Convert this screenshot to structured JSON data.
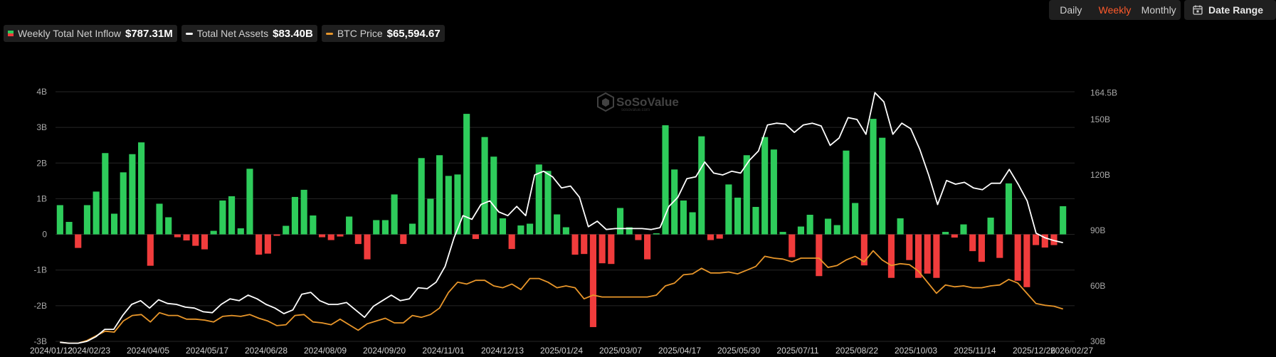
{
  "controls": {
    "intervals": [
      {
        "label": "Daily",
        "active": false
      },
      {
        "label": "Weekly",
        "active": true
      },
      {
        "label": "Monthly",
        "active": false
      }
    ],
    "date_range_label": "Date Range"
  },
  "legend": [
    {
      "name": "Weekly Total Net Inflow",
      "value": "$787.31M",
      "swatch": "bar"
    },
    {
      "name": "Total Net Assets",
      "value": "$83.40B",
      "swatch": "#ffffff"
    },
    {
      "name": "BTC Price",
      "value": "$65,594.67",
      "swatch": "#e8962a"
    }
  ],
  "watermark": {
    "name": "SoSoValue",
    "sub": "sosovalue.com"
  },
  "colors": {
    "positive": "#2ecc5b",
    "negative": "#f03c3c",
    "assets_line": "#ffffff",
    "price_line": "#e8962a",
    "grid": "#262626"
  },
  "chart_data": {
    "type": "bar",
    "x_tick_labels": [
      "2024/01/12",
      "2024/02/23",
      "2024/04/05",
      "2024/05/17",
      "2024/06/28",
      "2024/08/09",
      "2024/09/20",
      "2024/11/01",
      "2024/12/13",
      "2025/01/24",
      "2025/03/07",
      "2025/04/17",
      "2025/05/30",
      "2025/07/11",
      "2025/08/22",
      "2025/10/03",
      "2025/11/14",
      "2025/12/26",
      "2026/02/27"
    ],
    "left_axis": {
      "ticks": [
        "4B",
        "3B",
        "2B",
        "1B",
        "0",
        "-1B",
        "-2B",
        "-3B"
      ],
      "ylim": [
        -3,
        4
      ],
      "unit": "B"
    },
    "right_axis": {
      "ticks": [
        "164.5B",
        "150B",
        "120B",
        "90B",
        "60B",
        "30B"
      ],
      "ylim": [
        30,
        165
      ],
      "unit": "B"
    },
    "series": [
      {
        "name": "Weekly Total Net Inflow",
        "kind": "bar",
        "axis": "left",
        "values": [
          0.82,
          0.35,
          -0.38,
          0.82,
          1.2,
          2.28,
          0.58,
          1.74,
          2.25,
          2.58,
          -0.88,
          0.86,
          0.48,
          -0.08,
          -0.17,
          -0.32,
          -0.42,
          0.1,
          0.95,
          1.07,
          0.17,
          1.84,
          -0.57,
          -0.54,
          -0.04,
          0.24,
          1.05,
          1.25,
          0.53,
          -0.08,
          -0.16,
          -0.06,
          0.5,
          -0.27,
          -0.7,
          0.4,
          0.4,
          1.12,
          -0.27,
          0.3,
          2.14,
          1.0,
          2.22,
          1.64,
          1.68,
          3.38,
          -0.13,
          2.73,
          2.18,
          0.45,
          -0.41,
          0.25,
          0.3,
          1.96,
          1.78,
          0.56,
          0.2,
          -0.57,
          -0.55,
          -2.6,
          -0.81,
          -0.83,
          0.74,
          0.2,
          -0.16,
          -0.7,
          0.03,
          3.06,
          1.82,
          0.95,
          0.62,
          2.75,
          -0.16,
          -0.12,
          1.4,
          1.03,
          2.22,
          0.77,
          2.73,
          2.38,
          0.07,
          -0.64,
          0.22,
          0.55,
          -1.17,
          0.44,
          0.26,
          2.35,
          0.88,
          -0.87,
          3.24,
          2.71,
          -1.22,
          0.45,
          -0.72,
          -1.22,
          -1.1,
          -1.22,
          0.07,
          -0.09,
          0.28,
          -0.47,
          -0.77,
          0.47,
          -0.66,
          1.43,
          -1.3,
          -1.48,
          -0.3,
          -0.37,
          -0.3,
          0.79
        ]
      },
      {
        "name": "Total Net Assets",
        "kind": "line",
        "axis": "right",
        "values": [
          29.5,
          29.0,
          29.0,
          30.0,
          32.5,
          36.5,
          36.5,
          44.0,
          50.0,
          52.0,
          48.0,
          52.5,
          50.5,
          50.0,
          48.5,
          48.0,
          46.0,
          45.5,
          50.0,
          53.0,
          52.0,
          55.0,
          53.0,
          50.0,
          48.0,
          45.0,
          47.0,
          55.5,
          56.5,
          52.0,
          50.0,
          50.0,
          51.0,
          47.0,
          43.0,
          49.0,
          52.0,
          55.0,
          52.0,
          53.0,
          59.0,
          58.5,
          62.0,
          70.5,
          86.0,
          98.0,
          96.0,
          104.0,
          106.0,
          100.0,
          98.0,
          103.0,
          98.0,
          120.0,
          122.0,
          119.0,
          113.0,
          114.0,
          108.0,
          92.0,
          95.0,
          90.5,
          91.0,
          91.0,
          91.0,
          91.0,
          90.5,
          91.5,
          103.0,
          108.0,
          118.0,
          119.0,
          127.0,
          121.0,
          120.0,
          122.0,
          121.0,
          128.0,
          133.0,
          147.0,
          148.0,
          147.5,
          143.0,
          147.0,
          148.0,
          146.5,
          136.0,
          140.0,
          151.0,
          150.0,
          142.0,
          164.5,
          159.5,
          142.0,
          148.0,
          145.0,
          134.0,
          120.0,
          104.0,
          117.0,
          115.0,
          116.0,
          113.0,
          112.0,
          115.5,
          115.5,
          123.0,
          115.0,
          106.0,
          88.5,
          86.0,
          84.5,
          83.4
        ]
      },
      {
        "name": "BTC Price",
        "kind": "line",
        "axis": "right",
        "values": [
          29.5,
          29.0,
          29.0,
          30.5,
          33.0,
          35.5,
          35.0,
          41.0,
          44.0,
          44.5,
          40.5,
          45.5,
          44.0,
          44.0,
          42.0,
          42.0,
          41.5,
          40.5,
          43.5,
          44.0,
          43.5,
          44.5,
          42.5,
          41.0,
          38.5,
          39.0,
          44.0,
          44.5,
          40.5,
          40.0,
          39.0,
          42.0,
          39.0,
          36.0,
          39.5,
          41.0,
          42.5,
          40.0,
          40.0,
          44.0,
          43.0,
          44.5,
          48.0,
          56.5,
          62.0,
          61.0,
          63.0,
          63.0,
          60.0,
          59.0,
          61.0,
          58.0,
          64.0,
          64.0,
          62.0,
          59.0,
          60.0,
          59.0,
          53.0,
          55.0,
          54.0,
          54.0,
          54.0,
          54.0,
          54.0,
          54.0,
          55.0,
          60.0,
          61.5,
          66.0,
          66.5,
          69.5,
          67.0,
          67.0,
          67.5,
          66.5,
          68.5,
          70.5,
          76.0,
          75.0,
          74.5,
          73.0,
          75.0,
          75.0,
          75.0,
          70.0,
          71.0,
          74.0,
          76.0,
          73.0,
          79.0,
          74.0,
          71.0,
          72.0,
          71.5,
          68.0,
          62.0,
          56.0,
          60.5,
          59.5,
          60.0,
          59.0,
          59.0,
          60.0,
          60.5,
          63.5,
          61.5,
          56.0,
          50.5,
          49.5,
          49.0,
          47.5
        ]
      }
    ],
    "legend_position": "top-left",
    "grid": true
  }
}
